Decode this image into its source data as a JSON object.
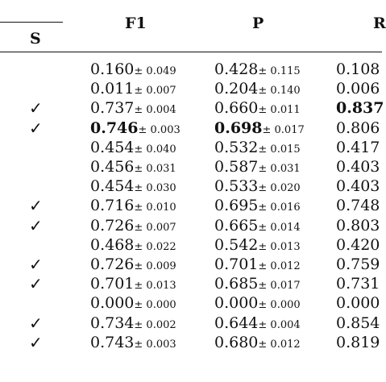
{
  "header": {
    "s": "S",
    "f1": "F1",
    "p": "P",
    "r": "R"
  },
  "rows": [
    {
      "s": "",
      "f1": "0.160",
      "f1_std": "± 0.049",
      "f1_bold": false,
      "p": "0.428",
      "p_std": "± 0.115",
      "p_bold": false,
      "r": "0.108",
      "r_bold": false
    },
    {
      "s": "",
      "f1": "0.011",
      "f1_std": "± 0.007",
      "f1_bold": false,
      "p": "0.204",
      "p_std": "± 0.140",
      "p_bold": false,
      "r": "0.006",
      "r_bold": false
    },
    {
      "s": "✓",
      "f1": "0.737",
      "f1_std": "± 0.004",
      "f1_bold": false,
      "p": "0.660",
      "p_std": "± 0.011",
      "p_bold": false,
      "r": "0.837",
      "r_bold": true
    },
    {
      "s": "✓",
      "f1": "0.746",
      "f1_std": "± 0.003",
      "f1_bold": true,
      "p": "0.698",
      "p_std": "± 0.017",
      "p_bold": true,
      "r": "0.806",
      "r_bold": false
    },
    {
      "s": "",
      "f1": "0.454",
      "f1_std": "± 0.040",
      "f1_bold": false,
      "p": "0.532",
      "p_std": "± 0.015",
      "p_bold": false,
      "r": "0.417",
      "r_bold": false
    },
    {
      "s": "",
      "f1": "0.456",
      "f1_std": "± 0.031",
      "f1_bold": false,
      "p": "0.587",
      "p_std": "± 0.031",
      "p_bold": false,
      "r": "0.403",
      "r_bold": false
    },
    {
      "s": "",
      "f1": "0.454",
      "f1_std": "± 0.030",
      "f1_bold": false,
      "p": "0.533",
      "p_std": "± 0.020",
      "p_bold": false,
      "r": "0.403",
      "r_bold": false
    },
    {
      "s": "✓",
      "f1": "0.716",
      "f1_std": "± 0.010",
      "f1_bold": false,
      "p": "0.695",
      "p_std": "± 0.016",
      "p_bold": false,
      "r": "0.748",
      "r_bold": false
    },
    {
      "s": "✓",
      "f1": "0.726",
      "f1_std": "± 0.007",
      "f1_bold": false,
      "p": "0.665",
      "p_std": "± 0.014",
      "p_bold": false,
      "r": "0.803",
      "r_bold": false
    },
    {
      "s": "",
      "f1": "0.468",
      "f1_std": "± 0.022",
      "f1_bold": false,
      "p": "0.542",
      "p_std": "± 0.013",
      "p_bold": false,
      "r": "0.420",
      "r_bold": false
    },
    {
      "s": "✓",
      "f1": "0.726",
      "f1_std": "± 0.009",
      "f1_bold": false,
      "p": "0.701",
      "p_std": "± 0.012",
      "p_bold": false,
      "r": "0.759",
      "r_bold": false
    },
    {
      "s": "✓",
      "f1": "0.701",
      "f1_std": "± 0.013",
      "f1_bold": false,
      "p": "0.685",
      "p_std": "± 0.017",
      "p_bold": false,
      "r": "0.731",
      "r_bold": false
    },
    {
      "s": "",
      "f1": "0.000",
      "f1_std": "± 0.000",
      "f1_bold": false,
      "p": "0.000",
      "p_std": "± 0.000",
      "p_bold": false,
      "r": "0.000",
      "r_bold": false
    },
    {
      "s": "✓",
      "f1": "0.734",
      "f1_std": "± 0.002",
      "f1_bold": false,
      "p": "0.644",
      "p_std": "± 0.004",
      "p_bold": false,
      "r": "0.854",
      "r_bold": false
    },
    {
      "s": "✓",
      "f1": "0.743",
      "f1_std": "± 0.003",
      "f1_bold": false,
      "p": "0.680",
      "p_std": "± 0.012",
      "p_bold": false,
      "r": "0.819",
      "r_bold": false
    }
  ]
}
